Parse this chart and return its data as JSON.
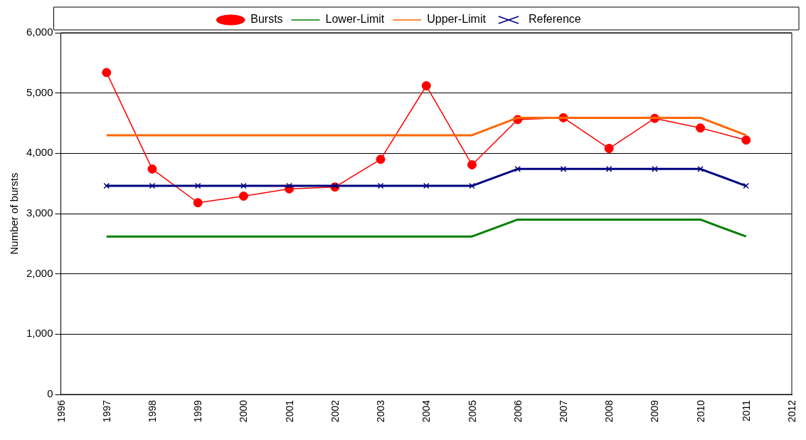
{
  "chart_data": {
    "type": "line",
    "ylabel": "Number of bursts",
    "x": [
      1997,
      1998,
      1999,
      2000,
      2001,
      2002,
      2003,
      2004,
      2005,
      2006,
      2007,
      2008,
      2009,
      2010,
      2011
    ],
    "series": [
      {
        "name": "Bursts",
        "color": "#ff0000",
        "marker": "circle",
        "values": [
          5340,
          3740,
          3180,
          3290,
          3410,
          3440,
          3900,
          5120,
          3810,
          4560,
          4590,
          4080,
          4580,
          4420,
          4220
        ]
      },
      {
        "name": "Lower-Limit",
        "color": "#008000",
        "marker": "none",
        "values": [
          2620,
          2620,
          2620,
          2620,
          2620,
          2620,
          2620,
          2620,
          2620,
          2900,
          2900,
          2900,
          2900,
          2900,
          2620
        ]
      },
      {
        "name": "Upper-Limit",
        "color": "#ff6600",
        "marker": "none",
        "values": [
          4300,
          4300,
          4300,
          4300,
          4300,
          4300,
          4300,
          4300,
          4300,
          4590,
          4590,
          4590,
          4590,
          4590,
          4300
        ]
      },
      {
        "name": "Reference",
        "color": "#000080",
        "marker": "cross",
        "values": [
          3460,
          3460,
          3460,
          3460,
          3460,
          3460,
          3460,
          3460,
          3460,
          3740,
          3740,
          3740,
          3740,
          3740,
          3460
        ]
      }
    ],
    "xlim": [
      1996,
      2012
    ],
    "xticks": [
      1996,
      1997,
      1998,
      1999,
      2000,
      2001,
      2002,
      2003,
      2004,
      2005,
      2006,
      2007,
      2008,
      2009,
      2010,
      2011,
      2012
    ],
    "ylim": [
      0,
      6000
    ],
    "yticks": [
      {
        "value": 0,
        "label": "0"
      },
      {
        "value": 1000,
        "label": "1,000"
      },
      {
        "value": 2000,
        "label": "2,000"
      },
      {
        "value": 3000,
        "label": "3,000"
      },
      {
        "value": 4000,
        "label": "4,000"
      },
      {
        "value": 5000,
        "label": "5,000"
      },
      {
        "value": 6000,
        "label": "6,000"
      }
    ],
    "grid": "y",
    "legend": "top"
  }
}
